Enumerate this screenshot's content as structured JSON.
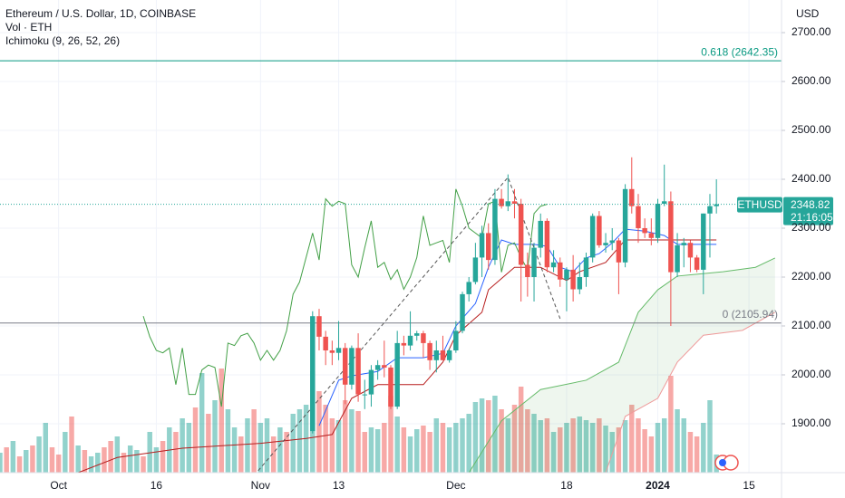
{
  "chart_data": {
    "type": "candlestick",
    "title": "Ethereum / U.S. Dollar, 1D, COINBASE",
    "subtitles": [
      "Vol · ETH",
      "Ichimoku (9, 26, 52, 26)"
    ],
    "currency": "USD",
    "symbol": "ETHUSD",
    "countdown": "21:16:05",
    "up_color": "#26a69a",
    "down_color": "#ef5350",
    "x": [
      "2023-11-09",
      "2023-11-10",
      "2023-11-11",
      "2023-11-12",
      "2023-11-13",
      "2023-11-14",
      "2023-11-15",
      "2023-11-16",
      "2023-11-17",
      "2023-11-18",
      "2023-11-19",
      "2023-11-20",
      "2023-11-21",
      "2023-11-22",
      "2023-11-23",
      "2023-11-24",
      "2023-11-25",
      "2023-11-26",
      "2023-11-27",
      "2023-11-28",
      "2023-11-29",
      "2023-11-30",
      "2023-12-01",
      "2023-12-02",
      "2023-12-03",
      "2023-12-04",
      "2023-12-05",
      "2023-12-06",
      "2023-12-07",
      "2023-12-08",
      "2023-12-09",
      "2023-12-10",
      "2023-12-11",
      "2023-12-12",
      "2023-12-13",
      "2023-12-14",
      "2023-12-15",
      "2023-12-16",
      "2023-12-17",
      "2023-12-18",
      "2023-12-19",
      "2023-12-20",
      "2023-12-21",
      "2023-12-22",
      "2023-12-23",
      "2023-12-24",
      "2023-12-25",
      "2023-12-26",
      "2023-12-27",
      "2023-12-28",
      "2023-12-29",
      "2023-12-30",
      "2023-12-31",
      "2024-01-01",
      "2024-01-02",
      "2024-01-03",
      "2024-01-04",
      "2024-01-05",
      "2024-01-06",
      "2024-01-07",
      "2024-01-08",
      "2024-01-09",
      "2024-01-10"
    ],
    "open": [
      1885,
      2120,
      2078,
      2050,
      2045,
      2055,
      1980,
      2055,
      1960,
      1960,
      2010,
      2020,
      2015,
      1935,
      2065,
      2060,
      2080,
      2085,
      2065,
      2030,
      2050,
      2030,
      2050,
      2090,
      2165,
      2190,
      2240,
      2290,
      2235,
      2360,
      2345,
      2355,
      2350,
      2225,
      2200,
      2260,
      2315,
      2220,
      2230,
      2195,
      2215,
      2175,
      2200,
      2240,
      2325,
      2265,
      2270,
      2275,
      2230,
      2380,
      2345,
      2300,
      2290,
      2280,
      2350,
      2355,
      2210,
      2265,
      2270,
      2240,
      2215,
      2330,
      2345
    ],
    "high": [
      2130,
      2135,
      2090,
      2070,
      2110,
      2065,
      2060,
      2085,
      1990,
      2020,
      2030,
      2070,
      2020,
      2090,
      2080,
      2130,
      2090,
      2090,
      2070,
      2070,
      2080,
      2055,
      2110,
      2170,
      2200,
      2270,
      2305,
      2310,
      2380,
      2380,
      2410,
      2380,
      2360,
      2250,
      2270,
      2330,
      2320,
      2255,
      2240,
      2220,
      2245,
      2230,
      2250,
      2330,
      2335,
      2290,
      2300,
      2280,
      2390,
      2445,
      2370,
      2320,
      2320,
      2360,
      2430,
      2375,
      2290,
      2280,
      2275,
      2245,
      2330,
      2370,
      2400
    ],
    "low": [
      1880,
      2050,
      2020,
      2020,
      2030,
      1940,
      1970,
      1945,
      1930,
      1935,
      1990,
      1995,
      1930,
      1930,
      2040,
      2050,
      2070,
      2035,
      2010,
      2005,
      2030,
      2025,
      2045,
      2085,
      2150,
      2185,
      2200,
      2215,
      2225,
      2340,
      2335,
      2320,
      2150,
      2160,
      2150,
      2240,
      2210,
      2210,
      2180,
      2130,
      2150,
      2165,
      2180,
      2230,
      2260,
      2250,
      2255,
      2165,
      2220,
      2330,
      2270,
      2280,
      2265,
      2270,
      2345,
      2100,
      2200,
      2220,
      2210,
      2210,
      2165,
      2240,
      2330
    ],
    "close": [
      2120,
      2078,
      2050,
      2045,
      2055,
      1980,
      2055,
      1960,
      1960,
      2010,
      2020,
      2015,
      1935,
      2065,
      2060,
      2080,
      2085,
      2065,
      2030,
      2050,
      2030,
      2050,
      2090,
      2165,
      2190,
      2240,
      2290,
      2235,
      2360,
      2345,
      2355,
      2350,
      2225,
      2200,
      2260,
      2315,
      2220,
      2230,
      2195,
      2215,
      2175,
      2200,
      2240,
      2325,
      2265,
      2270,
      2275,
      2230,
      2380,
      2345,
      2300,
      2290,
      2280,
      2350,
      2355,
      2210,
      2265,
      2270,
      2240,
      2215,
      2330,
      2345,
      2348.82
    ],
    "volume": {
      "ylim": [
        0,
        130
      ],
      "up_color": "rgba(38,166,154,0.5)",
      "down_color": "rgba(239,83,80,0.5)",
      "x": [
        "2023-09-22",
        "2023-09-23",
        "2023-09-24",
        "2023-09-25",
        "2023-09-26",
        "2023-09-27",
        "2023-09-28",
        "2023-09-29",
        "2023-09-30",
        "2023-10-01",
        "2023-10-02",
        "2023-10-03",
        "2023-10-04",
        "2023-10-05",
        "2023-10-06",
        "2023-10-07",
        "2023-10-08",
        "2023-10-09",
        "2023-10-10",
        "2023-10-11",
        "2023-10-12",
        "2023-10-13",
        "2023-10-14",
        "2023-10-15",
        "2023-10-16",
        "2023-10-17",
        "2023-10-18",
        "2023-10-19",
        "2023-10-20",
        "2023-10-21",
        "2023-10-22",
        "2023-10-23",
        "2023-10-24",
        "2023-10-25",
        "2023-10-26",
        "2023-10-27",
        "2023-10-28",
        "2023-10-29",
        "2023-10-30",
        "2023-10-31",
        "2023-11-01",
        "2023-11-02",
        "2023-11-03",
        "2023-11-04",
        "2023-11-05",
        "2023-11-06",
        "2023-11-07",
        "2023-11-08",
        "2023-11-09",
        "2023-11-10",
        "2023-11-11",
        "2023-11-12",
        "2023-11-13",
        "2023-11-14",
        "2023-11-15",
        "2023-11-16",
        "2023-11-17",
        "2023-11-18",
        "2023-11-19",
        "2023-11-20",
        "2023-11-21",
        "2023-11-22",
        "2023-11-23",
        "2023-11-24",
        "2023-11-25",
        "2023-11-26",
        "2023-11-27",
        "2023-11-28",
        "2023-11-29",
        "2023-11-30",
        "2023-12-01",
        "2023-12-02",
        "2023-12-03",
        "2023-12-04",
        "2023-12-05",
        "2023-12-06",
        "2023-12-07",
        "2023-12-08",
        "2023-12-09",
        "2023-12-10",
        "2023-12-11",
        "2023-12-12",
        "2023-12-13",
        "2023-12-14",
        "2023-12-15",
        "2023-12-16",
        "2023-12-17",
        "2023-12-18",
        "2023-12-19",
        "2023-12-20",
        "2023-12-21",
        "2023-12-22",
        "2023-12-23",
        "2023-12-24",
        "2023-12-25",
        "2023-12-26",
        "2023-12-27",
        "2023-12-28",
        "2023-12-29",
        "2023-12-30",
        "2023-12-31",
        "2024-01-01",
        "2024-01-02",
        "2024-01-03",
        "2024-01-04",
        "2024-01-05",
        "2024-01-06",
        "2024-01-07",
        "2024-01-08",
        "2024-01-09",
        "2024-01-10"
      ],
      "values": [
        22,
        28,
        35,
        18,
        25,
        30,
        40,
        55,
        28,
        20,
        45,
        62,
        30,
        25,
        18,
        22,
        28,
        35,
        40,
        22,
        30,
        25,
        18,
        45,
        28,
        35,
        50,
        45,
        60,
        55,
        72,
        110,
        65,
        80,
        115,
        70,
        50,
        40,
        60,
        70,
        55,
        60,
        40,
        50,
        45,
        65,
        70,
        75,
        112,
        90,
        75,
        60,
        58,
        80,
        70,
        68,
        45,
        50,
        48,
        55,
        85,
        62,
        50,
        40,
        48,
        52,
        45,
        60,
        55,
        50,
        55,
        60,
        65,
        78,
        82,
        80,
        85,
        70,
        60,
        75,
        95,
        70,
        65,
        58,
        60,
        45,
        50,
        55,
        60,
        62,
        58,
        55,
        60,
        52,
        45,
        50,
        58,
        75,
        60,
        48,
        40,
        55,
        60,
        107,
        70,
        60,
        45,
        40,
        55,
        80,
        20
      ],
      "rising": [
        true,
        false,
        true,
        false,
        true,
        false,
        true,
        true,
        false,
        false,
        true,
        false,
        true,
        false,
        true,
        true,
        false,
        false,
        true,
        false,
        true,
        true,
        false,
        true,
        true,
        false,
        true,
        false,
        true,
        true,
        false,
        true,
        false,
        true,
        false,
        true,
        true,
        false,
        true,
        false,
        true,
        true,
        false,
        true,
        false,
        true,
        true,
        true,
        true,
        false,
        false,
        false,
        true,
        false,
        true,
        false,
        false,
        true,
        true,
        false,
        false,
        true,
        false,
        true,
        true,
        false,
        false,
        true,
        false,
        true,
        true,
        true,
        true,
        true,
        true,
        false,
        true,
        false,
        true,
        false,
        false,
        false,
        true,
        true,
        false,
        true,
        false,
        true,
        false,
        true,
        true,
        true,
        false,
        true,
        true,
        false,
        true,
        false,
        false,
        false,
        false,
        true,
        true,
        false,
        true,
        true,
        false,
        false,
        true,
        true,
        true
      ]
    },
    "ichimoku": {
      "tenkan": {
        "color": "#2962ff",
        "x": [
          "2023-11-10",
          "2023-11-13",
          "2023-11-15",
          "2023-11-19",
          "2023-11-22",
          "2023-11-26",
          "2023-11-29",
          "2023-12-01",
          "2023-12-04",
          "2023-12-06",
          "2023-12-08",
          "2023-12-10",
          "2023-12-13",
          "2023-12-15",
          "2023-12-17",
          "2023-12-19",
          "2023-12-21",
          "2023-12-23",
          "2023-12-25",
          "2023-12-27",
          "2023-12-30",
          "2024-01-02",
          "2024-01-04",
          "2024-01-08",
          "2024-01-10"
        ],
        "values": [
          1896,
          1989,
          1998,
          2007,
          2035,
          2035,
          2044,
          2100,
          2146,
          2220,
          2276,
          2267,
          2267,
          2263,
          2220,
          2211,
          2239,
          2248,
          2270,
          2298,
          2294,
          2285,
          2267,
          2267,
          2267
        ]
      },
      "kijun": {
        "color": "#b71c1c",
        "x": [
          "2023-10-04",
          "2023-10-10",
          "2023-10-20",
          "2023-11-01",
          "2023-11-08",
          "2023-11-12",
          "2023-11-15",
          "2023-11-19",
          "2023-11-26",
          "2023-11-29",
          "2023-12-01",
          "2023-12-05",
          "2023-12-06",
          "2023-12-10",
          "2023-12-14",
          "2023-12-18",
          "2023-12-20",
          "2023-12-24",
          "2023-12-27",
          "2024-01-02",
          "2024-01-10"
        ],
        "values": [
          1800,
          1831,
          1850,
          1860,
          1870,
          1878,
          1952,
          1980,
          1980,
          2026,
          2081,
          2128,
          2174,
          2220,
          2220,
          2193,
          2211,
          2230,
          2276,
          2276,
          2276
        ]
      },
      "chikou": {
        "color": "#43a047",
        "x": [
          "2023-10-14",
          "2023-10-15",
          "2023-10-16",
          "2023-10-17",
          "2023-10-18",
          "2023-10-19",
          "2023-10-20",
          "2023-10-21",
          "2023-10-22",
          "2023-10-23",
          "2023-10-24",
          "2023-10-25",
          "2023-10-26",
          "2023-10-27",
          "2023-10-28",
          "2023-10-29",
          "2023-10-30",
          "2023-10-31",
          "2023-11-01",
          "2023-11-02",
          "2023-11-03",
          "2023-11-04",
          "2023-11-05",
          "2023-11-06",
          "2023-11-07",
          "2023-11-08",
          "2023-11-09",
          "2023-11-10",
          "2023-11-11",
          "2023-11-12",
          "2023-11-13",
          "2023-11-14",
          "2023-11-15",
          "2023-11-16",
          "2023-11-17",
          "2023-11-18",
          "2023-11-19",
          "2023-11-20",
          "2023-11-21",
          "2023-11-22",
          "2023-11-23",
          "2023-11-24",
          "2023-11-25",
          "2023-11-26",
          "2023-11-27",
          "2023-11-28",
          "2023-11-29",
          "2023-11-30",
          "2023-12-01",
          "2023-12-02",
          "2023-12-03",
          "2023-12-04",
          "2023-12-05",
          "2023-12-06",
          "2023-12-07",
          "2023-12-08",
          "2023-12-09",
          "2023-12-10",
          "2023-12-11",
          "2023-12-12",
          "2023-12-13",
          "2023-12-14",
          "2023-12-15"
        ],
        "values": [
          2120,
          2078,
          2050,
          2045,
          2055,
          1980,
          2055,
          1960,
          1960,
          2010,
          2020,
          2015,
          1935,
          2065,
          2060,
          2080,
          2085,
          2065,
          2030,
          2050,
          2030,
          2050,
          2090,
          2165,
          2190,
          2240,
          2290,
          2235,
          2360,
          2345,
          2355,
          2350,
          2225,
          2200,
          2260,
          2315,
          2220,
          2230,
          2195,
          2215,
          2175,
          2200,
          2240,
          2325,
          2265,
          2270,
          2275,
          2230,
          2380,
          2345,
          2300,
          2290,
          2280,
          2350,
          2355,
          2210,
          2265,
          2270,
          2240,
          2215,
          2330,
          2345,
          2348.82
        ]
      },
      "span_a": {
        "color": "#66bb6a",
        "x": [
          "2023-12-03",
          "2023-12-08",
          "2023-12-14",
          "2023-12-21",
          "2023-12-26",
          "2023-12-29",
          "2024-01-01",
          "2024-01-04",
          "2024-01-11",
          "2024-01-16",
          "2024-01-19"
        ],
        "values": [
          1800,
          1906,
          1970,
          1989,
          2026,
          2128,
          2174,
          2202,
          2211,
          2220,
          2239
        ]
      },
      "span_b": {
        "color": "#ef9a9a",
        "x": [
          "2023-12-03",
          "2023-12-24",
          "2023-12-27",
          "2024-01-01",
          "2024-01-04",
          "2024-01-08",
          "2024-01-14",
          "2024-01-19"
        ],
        "values": [
          1800,
          1800,
          1915,
          1952,
          2026,
          2081,
          2091,
          2128
        ]
      },
      "cloud_color": "rgba(67,160,71,0.09)"
    },
    "fib": [
      {
        "value": 2642.35,
        "label": "0.618 (2642.35)",
        "color": "#089981"
      },
      {
        "value": 2105.94,
        "label": "0 (2105.94)",
        "color": "#787b86"
      }
    ],
    "trend": {
      "color": "#555",
      "x": [
        "2023-10-31",
        "2023-12-09",
        "2023-12-17"
      ],
      "values": [
        1794,
        2404,
        2115
      ]
    },
    "xlim": [
      "2023-09-22",
      "2024-01-20"
    ],
    "ylim": [
      1800,
      2766.7
    ],
    "xticks": [
      {
        "value": "2023-10-01",
        "label": "Oct"
      },
      {
        "value": "2023-10-16",
        "label": "16"
      },
      {
        "value": "2023-11-01",
        "label": "Nov"
      },
      {
        "value": "2023-11-13",
        "label": "13"
      },
      {
        "value": "2023-12-01",
        "label": "Dec"
      },
      {
        "value": "2023-12-18",
        "label": "18"
      },
      {
        "value": "2024-01-01",
        "label": "2024"
      },
      {
        "value": "2024-01-15",
        "label": "15"
      }
    ],
    "yticks": [
      {
        "value": 1900,
        "label": "1900.00"
      },
      {
        "value": 2000,
        "label": "2000.00"
      },
      {
        "value": 2100,
        "label": "2100.00"
      },
      {
        "value": 2200,
        "label": "2200.00"
      },
      {
        "value": 2300,
        "label": "2300.00"
      },
      {
        "value": 2400,
        "label": "2400.00"
      },
      {
        "value": 2500,
        "label": "2500.00"
      },
      {
        "value": 2600,
        "label": "2600.00"
      },
      {
        "value": 2700,
        "label": "2700.00"
      }
    ],
    "grid": true
  }
}
